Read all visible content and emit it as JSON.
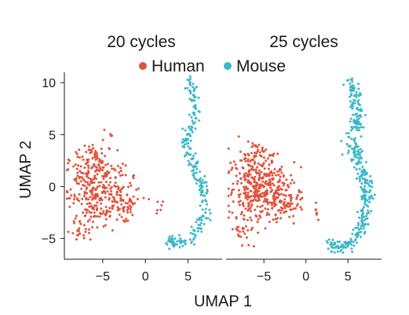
{
  "chart_data": {
    "type": "scatter",
    "xlabel": "UMAP 1",
    "ylabel": "UMAP 2",
    "legend": {
      "placement": "top-center",
      "entries": [
        {
          "name": "Human",
          "color": "#e0533d"
        },
        {
          "name": "Mouse",
          "color": "#3bb8c9"
        }
      ]
    },
    "grid": false,
    "panels": [
      {
        "title": "20 cycles",
        "xlim": [
          -9.5,
          9
        ],
        "ylim": [
          -7,
          11
        ],
        "xticks": [
          {
            "value": -5,
            "label": "−5"
          },
          {
            "value": 0,
            "label": "0"
          },
          {
            "value": 5,
            "label": "5"
          }
        ],
        "yticks": [
          {
            "value": 10,
            "label": "10"
          },
          {
            "value": 5,
            "label": "5"
          },
          {
            "value": 0,
            "label": "0"
          },
          {
            "value": -5,
            "label": "−5"
          }
        ],
        "series": [
          {
            "name": "Human",
            "color": "#e0533d",
            "clusters": [
              {
                "cx": -6.3,
                "cy": -0.2,
                "sx": 1.5,
                "sy": 1.9,
                "n": 210
              },
              {
                "cx": -4.2,
                "cy": -0.6,
                "sx": 1.4,
                "sy": 1.4,
                "n": 120
              },
              {
                "cx": -6.0,
                "cy": 2.6,
                "sx": 0.9,
                "sy": 0.8,
                "n": 40
              },
              {
                "cx": -7.8,
                "cy": -4.4,
                "sx": 0.5,
                "sy": 0.6,
                "n": 18
              },
              {
                "cx": -2.5,
                "cy": -1.8,
                "sx": 1.0,
                "sy": 0.6,
                "n": 40
              },
              {
                "cx": 1.5,
                "cy": -2.3,
                "sx": 0.3,
                "sy": 0.5,
                "n": 6
              },
              {
                "cx": -4.0,
                "cy": 5.0,
                "sx": 0.15,
                "sy": 0.2,
                "n": 3
              }
            ]
          },
          {
            "name": "Mouse",
            "color": "#3bb8c9",
            "path": [
              [
                5.0,
                10.3
              ],
              [
                5.8,
                8.5
              ],
              [
                5.6,
                6.3
              ],
              [
                4.6,
                4.3
              ],
              [
                5.6,
                2.0
              ],
              [
                6.6,
                0.2
              ],
              [
                6.9,
                -1.8
              ],
              [
                6.6,
                -3.4
              ],
              [
                5.3,
                -5.0
              ],
              [
                3.5,
                -5.7
              ],
              [
                2.5,
                -5.0
              ]
            ],
            "spread": 0.6,
            "n": 240
          }
        ]
      },
      {
        "title": "25 cycles",
        "xlim": [
          -9.5,
          9
        ],
        "ylim": [
          -7,
          11
        ],
        "xticks": [
          {
            "value": -5,
            "label": "−5"
          },
          {
            "value": 0,
            "label": "0"
          },
          {
            "value": 5,
            "label": "5"
          }
        ],
        "yticks": [],
        "series": [
          {
            "name": "Human",
            "color": "#e0533d",
            "clusters": [
              {
                "cx": -6.3,
                "cy": 0.0,
                "sx": 1.5,
                "sy": 1.7,
                "n": 230
              },
              {
                "cx": -3.8,
                "cy": -0.4,
                "sx": 1.3,
                "sy": 1.3,
                "n": 160
              },
              {
                "cx": -6.0,
                "cy": 3.2,
                "sx": 0.8,
                "sy": 0.6,
                "n": 40
              },
              {
                "cx": -7.6,
                "cy": -4.2,
                "sx": 0.6,
                "sy": 0.6,
                "n": 22
              },
              {
                "cx": -2.0,
                "cy": -1.8,
                "sx": 0.9,
                "sy": 0.7,
                "n": 50
              },
              {
                "cx": 1.4,
                "cy": -2.6,
                "sx": 0.3,
                "sy": 0.4,
                "n": 6
              }
            ]
          },
          {
            "name": "Mouse",
            "color": "#3bb8c9",
            "path": [
              [
                5.2,
                10.3
              ],
              [
                6.0,
                8.3
              ],
              [
                6.2,
                6.3
              ],
              [
                5.4,
                4.2
              ],
              [
                6.6,
                1.8
              ],
              [
                7.2,
                -0.5
              ],
              [
                7.1,
                -2.6
              ],
              [
                6.4,
                -4.4
              ],
              [
                5.0,
                -5.6
              ],
              [
                3.7,
                -6.1
              ],
              [
                2.8,
                -5.0
              ]
            ],
            "spread": 0.75,
            "n": 380
          }
        ]
      }
    ]
  }
}
